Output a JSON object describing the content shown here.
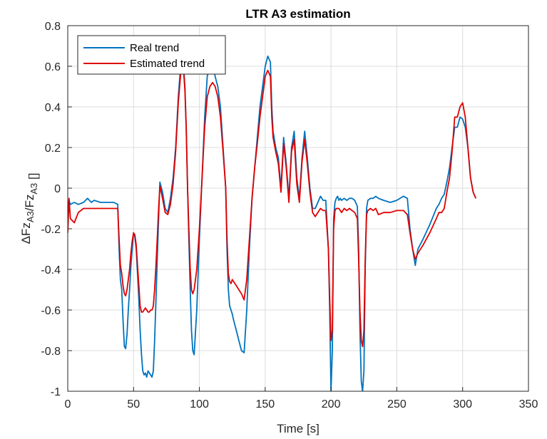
{
  "chart_data": {
    "type": "line",
    "title": "LTR A3 estimation",
    "xlabel": "Time [s]",
    "ylabel": "ΔFz_A3/Fz_A3 []",
    "xlim": [
      0,
      350
    ],
    "ylim": [
      -1,
      0.8
    ],
    "xticks": [
      0,
      50,
      100,
      150,
      200,
      250,
      300,
      350
    ],
    "xtick_labels": [
      "0",
      "50",
      "100",
      "150",
      "200",
      "250",
      "300",
      "350"
    ],
    "yticks": [
      -1,
      -0.8,
      -0.6,
      -0.4,
      -0.2,
      0,
      0.2,
      0.4,
      0.6,
      0.8
    ],
    "ytick_labels": [
      "-1",
      "-0.8",
      "-0.6",
      "-0.4",
      "-0.2",
      "0",
      "0.2",
      "0.4",
      "0.6",
      "0.8"
    ],
    "grid": true,
    "legend_position": "top-left",
    "series": [
      {
        "name": "Real trend",
        "color": "#0072BD",
        "x": [
          0,
          1,
          2,
          5,
          8,
          12,
          15,
          18,
          20,
          25,
          30,
          35,
          38,
          39,
          40,
          41,
          42,
          43,
          44,
          45,
          46,
          47,
          48,
          49,
          50,
          51,
          52,
          53,
          54,
          55,
          56,
          57,
          58,
          59,
          60,
          61,
          62,
          63,
          64,
          65,
          66,
          67,
          68,
          69,
          70,
          72,
          74,
          76,
          78,
          80,
          82,
          84,
          86,
          88,
          89,
          90,
          91,
          92,
          93,
          94,
          95,
          96,
          98,
          100,
          102,
          104,
          106,
          108,
          110,
          112,
          114,
          116,
          118,
          120,
          121,
          122,
          123,
          124,
          125,
          126,
          128,
          130,
          132,
          134,
          136,
          138,
          140,
          142,
          144,
          146,
          148,
          150,
          152,
          154,
          155,
          156,
          158,
          160,
          162,
          164,
          166,
          168,
          170,
          172,
          174,
          176,
          178,
          180,
          182,
          184,
          186,
          188,
          190,
          192,
          194,
          196,
          198,
          199,
          200,
          201,
          202,
          203,
          204,
          205,
          206,
          207,
          208,
          210,
          212,
          214,
          216,
          218,
          220,
          221,
          222,
          223,
          224,
          225,
          226,
          227,
          228,
          230,
          232,
          234,
          236,
          240,
          245,
          250,
          255,
          258,
          260,
          262,
          264,
          266,
          270,
          275,
          280,
          282,
          284,
          286,
          288,
          290,
          292,
          294,
          296,
          298,
          300,
          302,
          304,
          306,
          308,
          310
        ],
        "y": [
          -0.1,
          -0.06,
          -0.08,
          -0.07,
          -0.08,
          -0.07,
          -0.05,
          -0.07,
          -0.06,
          -0.07,
          -0.07,
          -0.07,
          -0.08,
          -0.3,
          -0.45,
          -0.5,
          -0.65,
          -0.78,
          -0.79,
          -0.72,
          -0.6,
          -0.5,
          -0.38,
          -0.3,
          -0.22,
          -0.24,
          -0.3,
          -0.42,
          -0.55,
          -0.7,
          -0.82,
          -0.9,
          -0.92,
          -0.91,
          -0.93,
          -0.9,
          -0.91,
          -0.92,
          -0.93,
          -0.9,
          -0.75,
          -0.55,
          -0.35,
          -0.15,
          0.03,
          -0.02,
          -0.1,
          -0.12,
          -0.05,
          0.05,
          0.2,
          0.45,
          0.62,
          0.6,
          0.5,
          0.3,
          0.0,
          -0.25,
          -0.5,
          -0.7,
          -0.8,
          -0.82,
          -0.6,
          -0.25,
          0.05,
          0.35,
          0.55,
          0.6,
          0.62,
          0.55,
          0.5,
          0.4,
          0.2,
          0.0,
          -0.3,
          -0.5,
          -0.58,
          -0.6,
          -0.62,
          -0.65,
          -0.7,
          -0.75,
          -0.8,
          -0.81,
          -0.6,
          -0.3,
          -0.05,
          0.1,
          0.25,
          0.4,
          0.5,
          0.6,
          0.65,
          0.62,
          0.4,
          0.28,
          0.2,
          0.15,
          0.0,
          0.25,
          0.12,
          -0.05,
          0.2,
          0.28,
          0.05,
          -0.05,
          0.15,
          0.28,
          0.15,
          0.0,
          -0.1,
          -0.1,
          -0.07,
          -0.04,
          -0.06,
          -0.06,
          -0.3,
          -0.6,
          -1.0,
          -0.8,
          -0.15,
          -0.07,
          -0.05,
          -0.04,
          -0.06,
          -0.05,
          -0.06,
          -0.05,
          -0.06,
          -0.05,
          -0.05,
          -0.06,
          -0.09,
          -0.3,
          -0.7,
          -0.95,
          -1.0,
          -0.9,
          -0.4,
          -0.1,
          -0.06,
          -0.05,
          -0.05,
          -0.04,
          -0.05,
          -0.06,
          -0.07,
          -0.06,
          -0.04,
          -0.05,
          -0.2,
          -0.3,
          -0.38,
          -0.3,
          -0.25,
          -0.18,
          -0.1,
          -0.08,
          -0.05,
          -0.03,
          0.03,
          0.1,
          0.2,
          0.3,
          0.3,
          0.35,
          0.34,
          0.3,
          0.2,
          0.05,
          -0.02,
          -0.05
        ]
      },
      {
        "name": "Estimated trend",
        "color": "#E00000",
        "x": [
          0,
          1,
          2,
          5,
          8,
          12,
          15,
          18,
          20,
          25,
          30,
          35,
          38,
          39,
          40,
          41,
          42,
          43,
          44,
          45,
          46,
          47,
          48,
          49,
          50,
          51,
          52,
          53,
          54,
          55,
          56,
          57,
          58,
          59,
          60,
          61,
          62,
          63,
          64,
          65,
          66,
          67,
          68,
          69,
          70,
          72,
          74,
          76,
          78,
          80,
          82,
          84,
          86,
          88,
          89,
          90,
          91,
          92,
          93,
          94,
          95,
          96,
          98,
          100,
          102,
          104,
          106,
          108,
          110,
          112,
          114,
          116,
          118,
          120,
          121,
          122,
          123,
          124,
          125,
          126,
          128,
          130,
          132,
          134,
          136,
          138,
          140,
          142,
          144,
          146,
          148,
          150,
          152,
          154,
          155,
          156,
          158,
          160,
          162,
          164,
          166,
          168,
          170,
          172,
          174,
          176,
          178,
          180,
          182,
          184,
          186,
          188,
          190,
          192,
          194,
          196,
          198,
          199,
          200,
          201,
          202,
          203,
          204,
          205,
          206,
          207,
          208,
          210,
          212,
          214,
          216,
          218,
          220,
          221,
          222,
          223,
          224,
          225,
          226,
          227,
          228,
          230,
          232,
          234,
          236,
          240,
          245,
          250,
          255,
          258,
          260,
          262,
          264,
          266,
          270,
          275,
          280,
          282,
          284,
          286,
          288,
          290,
          292,
          294,
          296,
          298,
          300,
          302,
          304,
          306,
          308,
          310
        ],
        "y": [
          -0.22,
          -0.05,
          -0.15,
          -0.17,
          -0.12,
          -0.1,
          -0.1,
          -0.1,
          -0.1,
          -0.1,
          -0.1,
          -0.1,
          -0.1,
          -0.25,
          -0.38,
          -0.42,
          -0.48,
          -0.52,
          -0.53,
          -0.5,
          -0.45,
          -0.4,
          -0.32,
          -0.26,
          -0.22,
          -0.23,
          -0.28,
          -0.38,
          -0.48,
          -0.58,
          -0.61,
          -0.61,
          -0.6,
          -0.59,
          -0.6,
          -0.61,
          -0.61,
          -0.6,
          -0.6,
          -0.58,
          -0.5,
          -0.38,
          -0.25,
          -0.1,
          0.01,
          -0.05,
          -0.12,
          -0.13,
          -0.08,
          0.02,
          0.18,
          0.42,
          0.58,
          0.58,
          0.48,
          0.3,
          0.0,
          -0.2,
          -0.4,
          -0.5,
          -0.52,
          -0.5,
          -0.4,
          -0.2,
          0.05,
          0.3,
          0.45,
          0.5,
          0.52,
          0.5,
          0.45,
          0.35,
          0.18,
          0.0,
          -0.25,
          -0.42,
          -0.46,
          -0.47,
          -0.45,
          -0.46,
          -0.48,
          -0.5,
          -0.52,
          -0.55,
          -0.45,
          -0.25,
          -0.05,
          0.1,
          0.22,
          0.35,
          0.45,
          0.55,
          0.58,
          0.55,
          0.35,
          0.25,
          0.18,
          0.12,
          -0.02,
          0.22,
          0.1,
          -0.07,
          0.18,
          0.24,
          0.02,
          -0.07,
          0.13,
          0.24,
          0.12,
          -0.02,
          -0.12,
          -0.14,
          -0.12,
          -0.1,
          -0.11,
          -0.11,
          -0.3,
          -0.55,
          -0.75,
          -0.7,
          -0.2,
          -0.11,
          -0.1,
          -0.1,
          -0.1,
          -0.11,
          -0.12,
          -0.1,
          -0.11,
          -0.1,
          -0.11,
          -0.12,
          -0.15,
          -0.35,
          -0.6,
          -0.75,
          -0.78,
          -0.7,
          -0.35,
          -0.13,
          -0.11,
          -0.1,
          -0.11,
          -0.1,
          -0.13,
          -0.12,
          -0.12,
          -0.11,
          -0.11,
          -0.13,
          -0.22,
          -0.3,
          -0.35,
          -0.32,
          -0.28,
          -0.22,
          -0.15,
          -0.12,
          -0.12,
          -0.1,
          -0.02,
          0.05,
          0.18,
          0.35,
          0.35,
          0.4,
          0.42,
          0.35,
          0.2,
          0.05,
          -0.02,
          -0.05
        ]
      }
    ]
  }
}
